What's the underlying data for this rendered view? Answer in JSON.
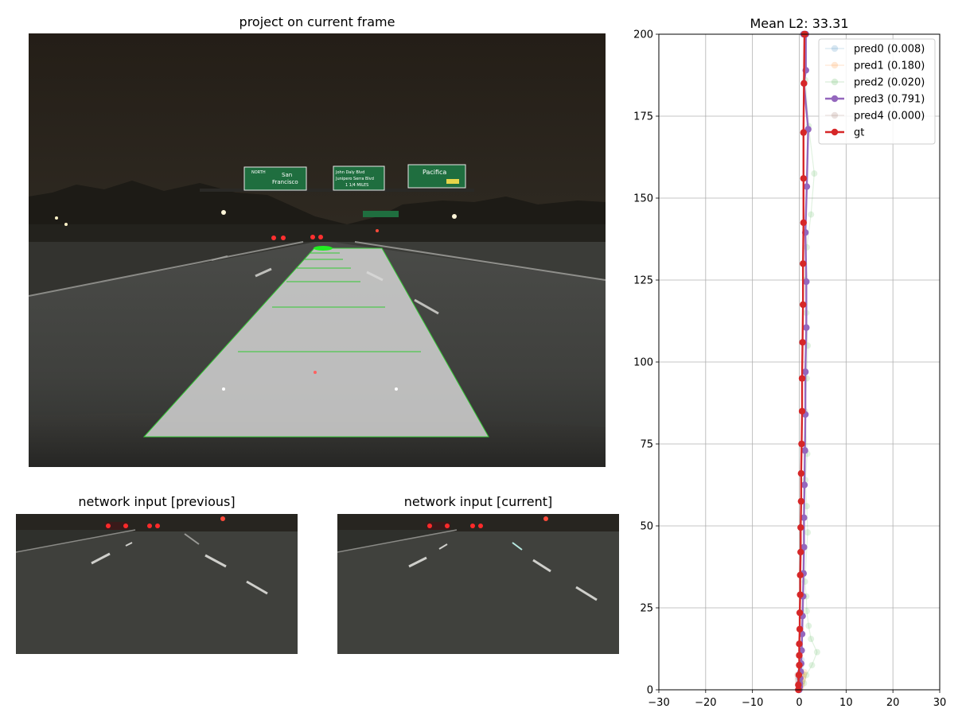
{
  "panels": {
    "main_title": "project on current frame",
    "prev_title": "network input [previous]",
    "curr_title": "network input [current]",
    "signs": {
      "left": [
        "NORTH",
        "San",
        "Francisco"
      ],
      "middle": [
        "John Daly Blvd",
        "Junipero Serra Blvd",
        "1 1/4 MILES"
      ],
      "right": [
        "Pacifica"
      ]
    }
  },
  "colors": {
    "pred0": "#1f77b4",
    "pred1": "#ff7f0e",
    "pred2": "#2ca02c",
    "pred3": "#9467bd",
    "pred4": "#8c564b",
    "gt": "#d62728",
    "path_fill": "#d9d9d9",
    "path_edge": "#34c934"
  },
  "chart_data": {
    "type": "line",
    "title": "Mean L2: 33.31",
    "xlim": [
      -30,
      30
    ],
    "ylim": [
      0,
      200
    ],
    "xticks": [
      -30,
      -20,
      -10,
      0,
      10,
      20,
      30
    ],
    "yticks": [
      0,
      25,
      50,
      75,
      100,
      125,
      150,
      175,
      200
    ],
    "grid": true,
    "legend_position": "upper right",
    "series": [
      {
        "name": "pred0 (0.008)",
        "emphasis": "faint",
        "x": [
          0,
          0.1,
          0.1,
          0.2,
          0.2,
          0.3,
          0.3,
          0.4,
          0.5
        ],
        "y": [
          0,
          0.8,
          1.6,
          2.6,
          3.7,
          4.9,
          6.2,
          7.6,
          9.1
        ]
      },
      {
        "name": "pred1 (0.180)",
        "emphasis": "faint",
        "x": [
          0,
          0.3,
          0.5,
          0.6,
          0.7,
          0.8,
          0.9,
          1.0,
          1.1
        ],
        "y": [
          0,
          0.6,
          1.2,
          1.9,
          2.6,
          3.3,
          4.0,
          4.7,
          5.4
        ]
      },
      {
        "name": "pred2 (0.020)",
        "emphasis": "faint",
        "x": [
          0,
          1.0,
          1.5,
          2.7,
          3.8,
          2.5,
          2.0,
          1.6,
          1.5,
          1.2,
          1.8,
          1.6,
          1.3,
          1.7,
          1.2,
          1.6,
          1.8,
          1.5,
          1.2,
          1.6,
          2.5,
          3.2,
          2.0,
          1.3,
          1.0
        ],
        "y": [
          0,
          2.0,
          4.5,
          7.5,
          11.5,
          15.5,
          19.5,
          24.0,
          28.5,
          33.0,
          48.0,
          56.0,
          64.0,
          72.0,
          85.0,
          95.0,
          105.0,
          115.0,
          125.0,
          135.0,
          145.0,
          157.5,
          172.0,
          186.0,
          200.0
        ]
      },
      {
        "name": "pred3 (0.791)",
        "emphasis": "strong",
        "x": [
          0.0,
          0.1,
          0.1,
          0.2,
          0.3,
          0.4,
          0.5,
          0.6,
          0.7,
          0.8,
          0.9,
          1.0,
          1.0,
          1.1,
          1.2,
          1.3,
          1.3,
          1.5,
          1.5,
          1.3,
          1.6,
          1.9,
          1.0,
          1.4,
          1.4,
          0.9
        ],
        "y": [
          0,
          1.0,
          2.0,
          3.5,
          5.5,
          8.0,
          12.0,
          17.0,
          22.5,
          28.5,
          35.5,
          43.5,
          52.5,
          62.5,
          73.0,
          84.0,
          97.0,
          110.5,
          124.5,
          139.5,
          153.5,
          171.0,
          185.0,
          189.0,
          200.0,
          200.0
        ]
      },
      {
        "name": "pred4 (0.000)",
        "emphasis": "faint",
        "x": [
          0,
          -0.1,
          -0.2,
          -0.2,
          -0.3,
          -0.3,
          -0.4
        ],
        "y": [
          0,
          0.7,
          1.4,
          2.2,
          3.0,
          3.8,
          4.6
        ]
      },
      {
        "name": "gt",
        "emphasis": "strong",
        "x": [
          -0.2,
          -0.2,
          -0.1,
          0.0,
          0.0,
          0.0,
          0.1,
          0.1,
          0.2,
          0.2,
          0.3,
          0.3,
          0.4,
          0.4,
          0.5,
          0.6,
          0.6,
          0.7,
          0.8,
          0.8,
          0.9,
          0.9,
          0.9,
          1.0,
          1.1,
          1.2
        ],
        "y": [
          0,
          1.5,
          4.5,
          7.5,
          10.5,
          14.0,
          18.5,
          23.5,
          29.0,
          35.0,
          42.0,
          49.5,
          57.5,
          66.0,
          75.0,
          85.0,
          95.0,
          106.0,
          117.5,
          130.0,
          142.5,
          156.0,
          170.0,
          185.0,
          200.0,
          200.0
        ]
      }
    ]
  }
}
